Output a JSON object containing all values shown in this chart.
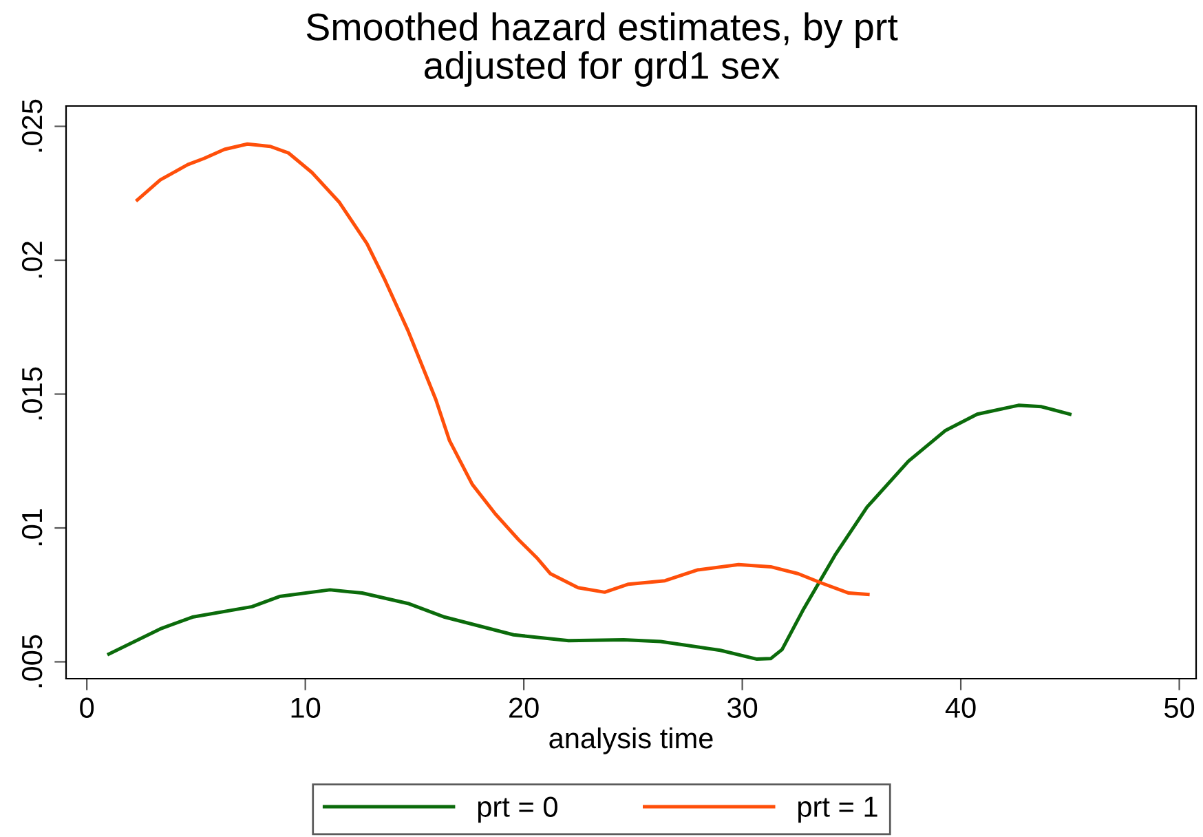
{
  "chart_data": {
    "type": "line",
    "title": "Smoothed hazard estimates, by prt",
    "subtitle": "adjusted for grd1 sex",
    "xlabel": "analysis time",
    "xlim": [
      -0.95,
      50.77
    ],
    "xticks": [
      0,
      10,
      20,
      30,
      40,
      50
    ],
    "ylim": [
      0.00437,
      0.02576
    ],
    "yticks": [
      {
        "value": 0.005,
        "label": ".005"
      },
      {
        "value": 0.01,
        "label": ".01"
      },
      {
        "value": 0.015,
        "label": ".015"
      },
      {
        "value": 0.02,
        "label": ".02"
      },
      {
        "value": 0.025,
        "label": ".025"
      }
    ],
    "grid": false,
    "legend": "bottom",
    "marker": "none",
    "line_style": "solid",
    "series": [
      {
        "name": "prt = 0",
        "color": "#0b6b0b",
        "x": [
          1.01,
          3.36,
          4.83,
          7.56,
          8.82,
          11.13,
          12.6,
          14.7,
          16.38,
          19.53,
          22.05,
          24.57,
          26.26,
          28.99,
          30.67,
          31.3,
          31.82,
          32.77,
          34.24,
          35.71,
          37.6,
          39.28,
          40.75,
          42.64,
          43.69,
          44.99
        ],
        "values": [
          0.00529,
          0.00623,
          0.00667,
          0.00706,
          0.00744,
          0.00769,
          0.00757,
          0.00718,
          0.00667,
          0.00601,
          0.00579,
          0.00582,
          0.00576,
          0.00543,
          0.0051,
          0.00512,
          0.00546,
          0.00692,
          0.00898,
          0.01078,
          0.01249,
          0.01363,
          0.01425,
          0.01458,
          0.01453,
          0.01425
        ]
      },
      {
        "name": "prt = 1",
        "color": "#ff4f0a",
        "x": [
          2.31,
          3.36,
          4.62,
          5.36,
          6.3,
          7.35,
          8.4,
          9.24,
          10.3,
          11.56,
          12.82,
          13.65,
          14.7,
          15.97,
          16.6,
          17.64,
          18.7,
          19.75,
          20.59,
          21.22,
          22.48,
          23.7,
          24.79,
          26.46,
          27.94,
          29.83,
          31.3,
          32.56,
          33.6,
          34.87,
          35.75
        ],
        "values": [
          0.02225,
          0.023,
          0.02357,
          0.0238,
          0.02414,
          0.02434,
          0.02425,
          0.024,
          0.02328,
          0.02216,
          0.02062,
          0.01925,
          0.01737,
          0.0148,
          0.01326,
          0.01163,
          0.01052,
          0.00957,
          0.00889,
          0.00829,
          0.00777,
          0.0076,
          0.0079,
          0.00803,
          0.00843,
          0.00863,
          0.00855,
          0.00829,
          0.00795,
          0.00757,
          0.00752
        ]
      }
    ]
  }
}
